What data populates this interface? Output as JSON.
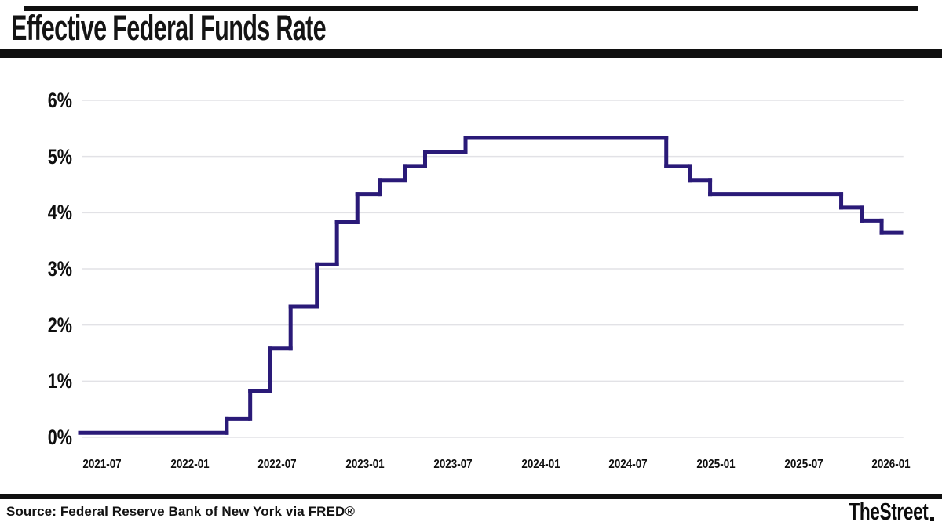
{
  "header": {
    "title": "Effective Federal Funds Rate"
  },
  "footer": {
    "source": "Source: Federal Reserve Bank of New York via FRED®",
    "brand": "TheStreet"
  },
  "colors": {
    "line": "#2a1a78",
    "grid": "#e2e2e6",
    "rule": "#101010",
    "text": "#0f0f0f"
  },
  "chart_data": {
    "type": "line",
    "style": "step",
    "title": "Effective Federal Funds Rate",
    "xlabel": "",
    "ylabel": "",
    "unit": "percent",
    "grid": "horizontal",
    "legend": "none",
    "ylim": [
      0,
      6
    ],
    "y_ticks": [
      "0%",
      "1%",
      "2%",
      "3%",
      "4%",
      "5%",
      "6%"
    ],
    "x_ticks": [
      "2021-07",
      "2022-01",
      "2022-07",
      "2023-01",
      "2023-07",
      "2024-01",
      "2024-07",
      "2025-01",
      "2025-07",
      "2026-01"
    ],
    "x_range": [
      "2021-05-15",
      "2026-01-22"
    ],
    "steps": [
      {
        "from": "2021-05-15",
        "to": "2022-03-17",
        "value": 0.08
      },
      {
        "from": "2022-03-17",
        "to": "2022-05-05",
        "value": 0.33
      },
      {
        "from": "2022-05-05",
        "to": "2022-06-16",
        "value": 0.83
      },
      {
        "from": "2022-06-16",
        "to": "2022-07-28",
        "value": 1.58
      },
      {
        "from": "2022-07-28",
        "to": "2022-09-22",
        "value": 2.33
      },
      {
        "from": "2022-09-22",
        "to": "2022-11-03",
        "value": 3.08
      },
      {
        "from": "2022-11-03",
        "to": "2022-12-15",
        "value": 3.83
      },
      {
        "from": "2022-12-15",
        "to": "2023-02-02",
        "value": 4.33
      },
      {
        "from": "2023-02-02",
        "to": "2023-03-23",
        "value": 4.58
      },
      {
        "from": "2023-03-23",
        "to": "2023-05-04",
        "value": 4.83
      },
      {
        "from": "2023-05-04",
        "to": "2023-07-27",
        "value": 5.08
      },
      {
        "from": "2023-07-27",
        "to": "2024-09-19",
        "value": 5.33
      },
      {
        "from": "2024-09-19",
        "to": "2024-11-08",
        "value": 4.83
      },
      {
        "from": "2024-11-08",
        "to": "2024-12-19",
        "value": 4.58
      },
      {
        "from": "2024-12-19",
        "to": "2025-09-18",
        "value": 4.33
      },
      {
        "from": "2025-09-18",
        "to": "2025-10-30",
        "value": 4.09
      },
      {
        "from": "2025-10-30",
        "to": "2025-12-11",
        "value": 3.86
      },
      {
        "from": "2025-12-11",
        "to": "2026-01-22",
        "value": 3.64
      }
    ]
  }
}
